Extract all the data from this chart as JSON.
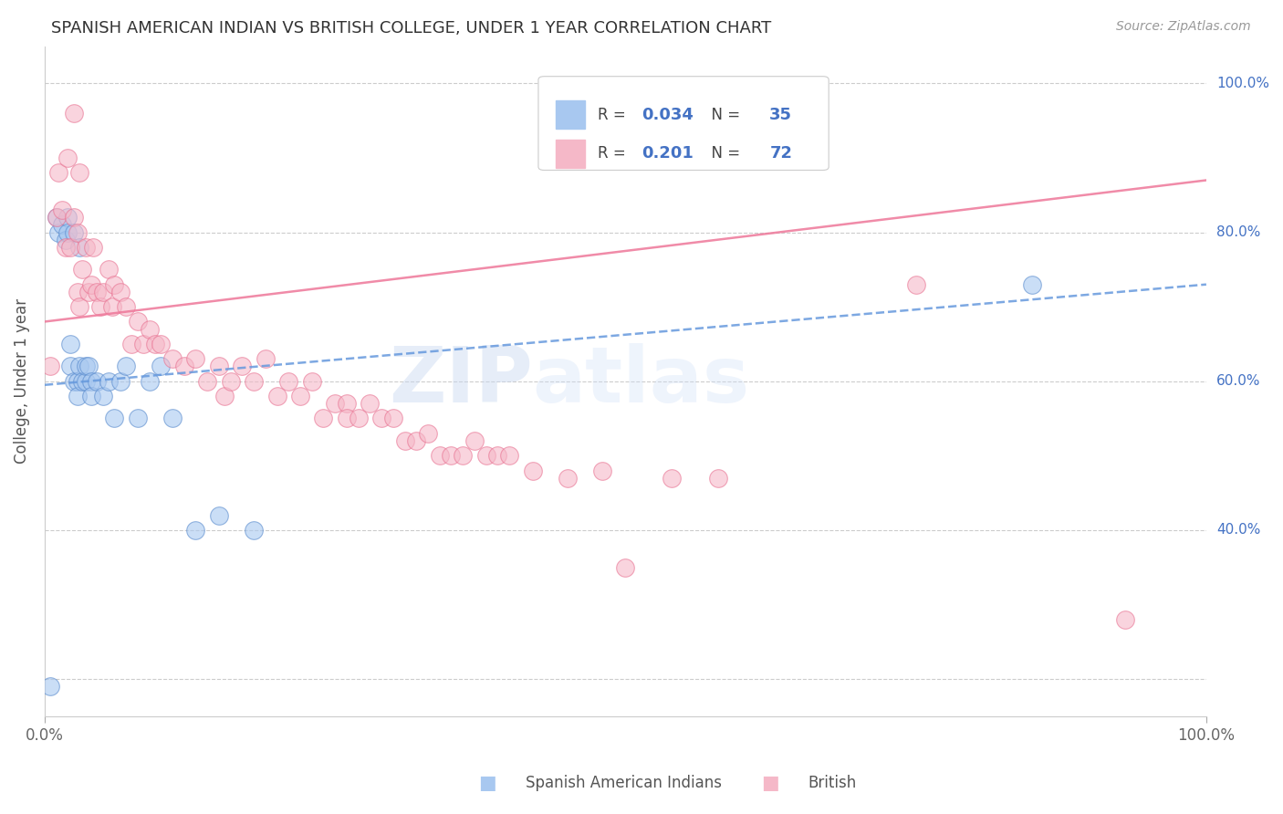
{
  "title": "SPANISH AMERICAN INDIAN VS BRITISH COLLEGE, UNDER 1 YEAR CORRELATION CHART",
  "source_text": "Source: ZipAtlas.com",
  "ylabel": "College, Under 1 year",
  "watermark_zip": "ZIP",
  "watermark_atlas": "atlas",
  "xlim": [
    0.0,
    1.0
  ],
  "ylim": [
    0.15,
    1.05
  ],
  "legend_r_blue": "0.034",
  "legend_n_blue": "35",
  "legend_r_pink": "0.201",
  "legend_n_pink": "72",
  "blue_color": "#a8c8f0",
  "pink_color": "#f5b8c8",
  "blue_edge_color": "#5588cc",
  "pink_edge_color": "#e87090",
  "blue_line_color": "#6699dd",
  "pink_line_color": "#ee7799",
  "title_fontsize": 13,
  "blue_scatter_x": [
    0.005,
    0.01,
    0.012,
    0.015,
    0.018,
    0.02,
    0.02,
    0.022,
    0.022,
    0.025,
    0.025,
    0.028,
    0.028,
    0.03,
    0.03,
    0.032,
    0.035,
    0.035,
    0.038,
    0.04,
    0.04,
    0.045,
    0.05,
    0.055,
    0.06,
    0.065,
    0.07,
    0.08,
    0.09,
    0.1,
    0.11,
    0.13,
    0.15,
    0.18,
    0.85
  ],
  "blue_scatter_y": [
    0.19,
    0.82,
    0.8,
    0.81,
    0.79,
    0.82,
    0.8,
    0.65,
    0.62,
    0.8,
    0.6,
    0.6,
    0.58,
    0.78,
    0.62,
    0.6,
    0.6,
    0.62,
    0.62,
    0.6,
    0.58,
    0.6,
    0.58,
    0.6,
    0.55,
    0.6,
    0.62,
    0.55,
    0.6,
    0.62,
    0.55,
    0.4,
    0.42,
    0.4,
    0.73
  ],
  "pink_scatter_x": [
    0.005,
    0.01,
    0.012,
    0.015,
    0.018,
    0.02,
    0.022,
    0.025,
    0.025,
    0.028,
    0.028,
    0.03,
    0.03,
    0.032,
    0.035,
    0.038,
    0.04,
    0.042,
    0.045,
    0.048,
    0.05,
    0.055,
    0.058,
    0.06,
    0.065,
    0.07,
    0.075,
    0.08,
    0.085,
    0.09,
    0.095,
    0.1,
    0.11,
    0.12,
    0.13,
    0.14,
    0.15,
    0.155,
    0.16,
    0.17,
    0.18,
    0.19,
    0.2,
    0.21,
    0.22,
    0.23,
    0.24,
    0.25,
    0.26,
    0.26,
    0.27,
    0.28,
    0.29,
    0.3,
    0.31,
    0.32,
    0.33,
    0.34,
    0.35,
    0.36,
    0.37,
    0.38,
    0.39,
    0.4,
    0.42,
    0.45,
    0.48,
    0.5,
    0.54,
    0.58,
    0.75,
    0.93
  ],
  "pink_scatter_y": [
    0.62,
    0.82,
    0.88,
    0.83,
    0.78,
    0.9,
    0.78,
    0.96,
    0.82,
    0.8,
    0.72,
    0.88,
    0.7,
    0.75,
    0.78,
    0.72,
    0.73,
    0.78,
    0.72,
    0.7,
    0.72,
    0.75,
    0.7,
    0.73,
    0.72,
    0.7,
    0.65,
    0.68,
    0.65,
    0.67,
    0.65,
    0.65,
    0.63,
    0.62,
    0.63,
    0.6,
    0.62,
    0.58,
    0.6,
    0.62,
    0.6,
    0.63,
    0.58,
    0.6,
    0.58,
    0.6,
    0.55,
    0.57,
    0.57,
    0.55,
    0.55,
    0.57,
    0.55,
    0.55,
    0.52,
    0.52,
    0.53,
    0.5,
    0.5,
    0.5,
    0.52,
    0.5,
    0.5,
    0.5,
    0.48,
    0.47,
    0.48,
    0.35,
    0.47,
    0.47,
    0.73,
    0.28
  ]
}
